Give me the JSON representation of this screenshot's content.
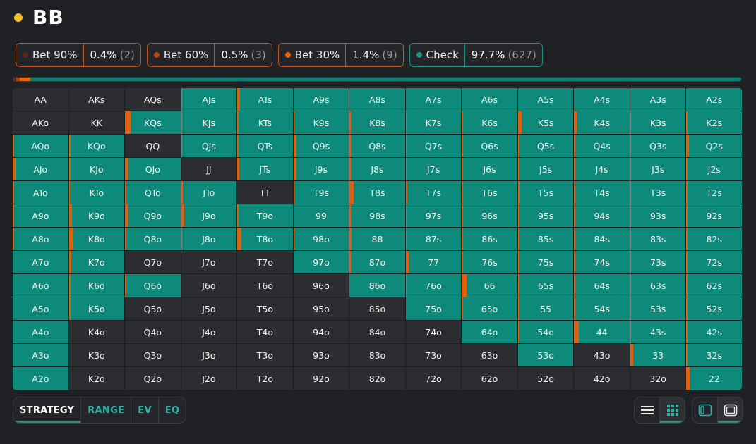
{
  "header": {
    "title": "BB",
    "dot_color": "#f2c230"
  },
  "actions": [
    {
      "id": "bet90",
      "label": "Bet 90%",
      "pct": "0.4%",
      "count": "(2)",
      "color": "#5a2a10",
      "pct_num": 0.4
    },
    {
      "id": "bet60",
      "label": "Bet 60%",
      "pct": "0.5%",
      "count": "(3)",
      "color": "#b5440f",
      "pct_num": 0.5
    },
    {
      "id": "bet30",
      "label": "Bet 30%",
      "pct": "1.4%",
      "count": "(9)",
      "color": "#e8670f",
      "pct_num": 1.4
    },
    {
      "id": "check",
      "label": "Check",
      "pct": "97.7%",
      "count": "(627)",
      "color": "#1d9585",
      "pct_num": 97.7
    }
  ],
  "grid": {
    "rows": [
      [
        "AA",
        "AKs",
        "AQs",
        "AJs",
        "ATs",
        "A9s",
        "A8s",
        "A7s",
        "A6s",
        "A5s",
        "A4s",
        "A3s",
        "A2s"
      ],
      [
        "AKo",
        "KK",
        "KQs",
        "KJs",
        "KTs",
        "K9s",
        "K8s",
        "K7s",
        "K6s",
        "K5s",
        "K4s",
        "K3s",
        "K2s"
      ],
      [
        "AQo",
        "KQo",
        "QQ",
        "QJs",
        "QTs",
        "Q9s",
        "Q8s",
        "Q7s",
        "Q6s",
        "Q5s",
        "Q4s",
        "Q3s",
        "Q2s"
      ],
      [
        "AJo",
        "KJo",
        "QJo",
        "JJ",
        "JTs",
        "J9s",
        "J8s",
        "J7s",
        "J6s",
        "J5s",
        "J4s",
        "J3s",
        "J2s"
      ],
      [
        "ATo",
        "KTo",
        "QTo",
        "JTo",
        "TT",
        "T9s",
        "T8s",
        "T7s",
        "T6s",
        "T5s",
        "T4s",
        "T3s",
        "T2s"
      ],
      [
        "A9o",
        "K9o",
        "Q9o",
        "J9o",
        "T9o",
        "99",
        "98s",
        "97s",
        "96s",
        "95s",
        "94s",
        "93s",
        "92s"
      ],
      [
        "A8o",
        "K8o",
        "Q8o",
        "J8o",
        "T8o",
        "98o",
        "88",
        "87s",
        "86s",
        "85s",
        "84s",
        "83s",
        "82s"
      ],
      [
        "A7o",
        "K7o",
        "Q7o",
        "J7o",
        "T7o",
        "97o",
        "87o",
        "77",
        "76s",
        "75s",
        "74s",
        "73s",
        "72s"
      ],
      [
        "A6o",
        "K6o",
        "Q6o",
        "J6o",
        "T6o",
        "96o",
        "86o",
        "76o",
        "66",
        "65s",
        "64s",
        "63s",
        "62s"
      ],
      [
        "A5o",
        "K5o",
        "Q5o",
        "J5o",
        "T5o",
        "95o",
        "85o",
        "75o",
        "65o",
        "55",
        "54s",
        "53s",
        "52s"
      ],
      [
        "A4o",
        "K4o",
        "Q4o",
        "J4o",
        "T4o",
        "94o",
        "84o",
        "74o",
        "64o",
        "54o",
        "44",
        "43s",
        "42s"
      ],
      [
        "A3o",
        "K3o",
        "Q3o",
        "J3o",
        "T3o",
        "93o",
        "83o",
        "73o",
        "63o",
        "53o",
        "43o",
        "33",
        "32s"
      ],
      [
        "A2o",
        "K2o",
        "Q2o",
        "J2o",
        "T2o",
        "92o",
        "82o",
        "72o",
        "62o",
        "52o",
        "42o",
        "32o",
        "22"
      ]
    ],
    "in_range": [
      [
        0,
        0,
        0,
        1,
        1,
        1,
        1,
        1,
        1,
        1,
        1,
        1,
        1
      ],
      [
        0,
        0,
        1,
        1,
        1,
        1,
        1,
        1,
        1,
        1,
        1,
        1,
        1
      ],
      [
        1,
        1,
        0,
        1,
        1,
        1,
        1,
        1,
        1,
        1,
        1,
        1,
        1
      ],
      [
        1,
        1,
        1,
        0,
        1,
        1,
        1,
        1,
        1,
        1,
        1,
        1,
        1
      ],
      [
        1,
        1,
        1,
        1,
        0,
        1,
        1,
        1,
        1,
        1,
        1,
        1,
        1
      ],
      [
        1,
        1,
        1,
        1,
        1,
        1,
        1,
        1,
        1,
        1,
        1,
        1,
        1
      ],
      [
        1,
        1,
        1,
        1,
        1,
        1,
        1,
        1,
        1,
        1,
        1,
        1,
        1
      ],
      [
        1,
        1,
        0,
        0,
        0,
        1,
        1,
        1,
        1,
        1,
        1,
        1,
        1
      ],
      [
        1,
        1,
        1,
        0,
        0,
        0,
        1,
        1,
        1,
        1,
        1,
        1,
        1
      ],
      [
        1,
        1,
        0,
        0,
        0,
        0,
        0,
        1,
        1,
        1,
        1,
        1,
        1
      ],
      [
        1,
        0,
        0,
        0,
        0,
        0,
        0,
        0,
        1,
        1,
        1,
        1,
        1
      ],
      [
        1,
        0,
        0,
        0,
        0,
        0,
        0,
        0,
        0,
        1,
        0,
        1,
        1
      ],
      [
        1,
        0,
        0,
        0,
        0,
        0,
        0,
        0,
        0,
        0,
        0,
        0,
        1
      ]
    ],
    "bet_share": [
      [
        0,
        0,
        0,
        0.02,
        0.05,
        0,
        0,
        0,
        0,
        0,
        0,
        0,
        0
      ],
      [
        0,
        0,
        0.1,
        0.02,
        0.02,
        0.02,
        0.02,
        0.02,
        0.02,
        0.06,
        0.05,
        0.02,
        0.02
      ],
      [
        0.03,
        0.03,
        0,
        0.02,
        0.02,
        0.05,
        0.02,
        0.02,
        0.02,
        0.02,
        0.02,
        0.02,
        0.04
      ],
      [
        0.05,
        0.03,
        0.05,
        0,
        0.04,
        0.05,
        0.02,
        0.02,
        0.02,
        0.02,
        0.02,
        0.02,
        0.02
      ],
      [
        0.03,
        0.02,
        0.02,
        0.03,
        0,
        0.02,
        0.07,
        0.03,
        0.02,
        0.03,
        0.02,
        0.02,
        0.02
      ],
      [
        0.02,
        0.06,
        0.05,
        0.05,
        0.02,
        0,
        0.02,
        0.02,
        0.02,
        0.02,
        0.02,
        0.02,
        0.02
      ],
      [
        0.02,
        0.07,
        0.02,
        0.02,
        0.07,
        0.02,
        0.03,
        0.02,
        0.02,
        0.02,
        0.02,
        0.02,
        0.02
      ],
      [
        0,
        0.04,
        0,
        0,
        0,
        0,
        0.02,
        0.06,
        0.02,
        0.02,
        0.02,
        0.02,
        0.02
      ],
      [
        0,
        0.03,
        0.02,
        0,
        0,
        0,
        0,
        0.02,
        0.08,
        0.02,
        0.02,
        0.02,
        0.02
      ],
      [
        0,
        0.03,
        0,
        0,
        0,
        0,
        0,
        0,
        0.02,
        0.02,
        0.02,
        0.02,
        0.02
      ],
      [
        0,
        0,
        0,
        0,
        0,
        0,
        0,
        0,
        0,
        0.02,
        0.08,
        0.02,
        0.02
      ],
      [
        0,
        0,
        0,
        0,
        0,
        0,
        0,
        0,
        0,
        0,
        0,
        0.05,
        0.02
      ],
      [
        0,
        0,
        0,
        0,
        0,
        0,
        0,
        0,
        0,
        0,
        0,
        0,
        0.06
      ]
    ]
  },
  "tabs": [
    "STRATEGY",
    "RANGE",
    "EV",
    "EQ"
  ],
  "active_tab": "STRATEGY",
  "view_controls": {
    "list_icon": "list-icon",
    "grid_icon": "grid-icon",
    "panel_left_icon": "panel-left-icon",
    "panel_full_icon": "panel-full-icon"
  },
  "colors": {
    "teal": "#0e8a7b",
    "bet_mark": "#e0600f",
    "cell_dark": "#2b2d30"
  }
}
